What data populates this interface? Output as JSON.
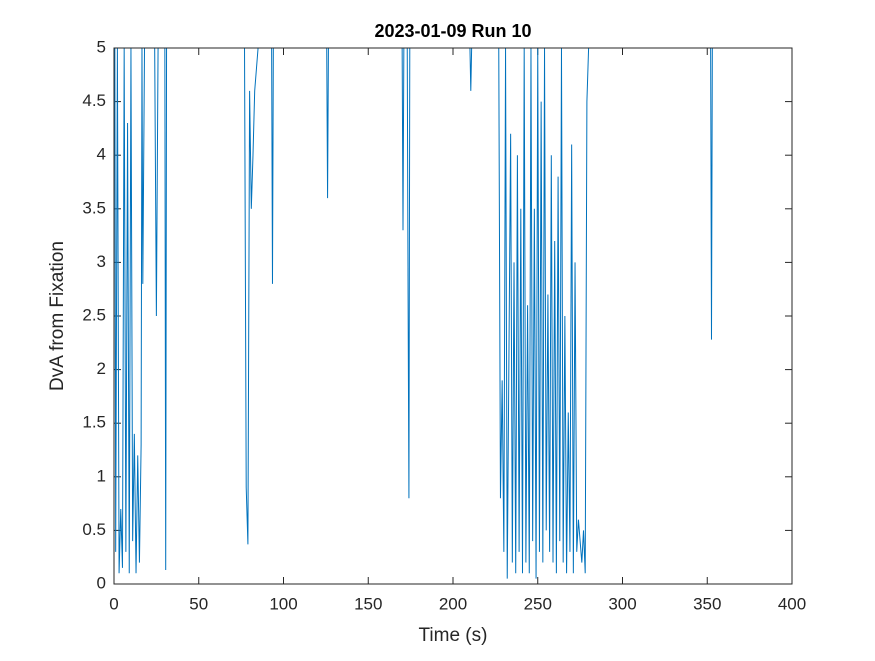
{
  "chart_data": {
    "type": "line",
    "title": "2023-01-09 Run 10",
    "x_label": "Time (s)",
    "y_label": "DvA from Fixation",
    "xlim": [
      0,
      400
    ],
    "ylim": [
      0,
      5
    ],
    "xticks": [
      0,
      50,
      100,
      150,
      200,
      250,
      300,
      350,
      400
    ],
    "yticks": [
      0,
      0.5,
      1,
      1.5,
      2,
      2.5,
      3,
      3.5,
      4,
      4.5,
      5
    ],
    "x": [
      0.5,
      1,
      2,
      3,
      4,
      5,
      6,
      7,
      8,
      9,
      10,
      11,
      12,
      13,
      14,
      15,
      16,
      16.5,
      17,
      18,
      null,
      24,
      25,
      26,
      null,
      30,
      30.5,
      31,
      null,
      77,
      78,
      79,
      80,
      81,
      82,
      83,
      85,
      null,
      93,
      93.5,
      94,
      null,
      125.5,
      126,
      126.5,
      null,
      170,
      170.5,
      171,
      null,
      173,
      173.5,
      174,
      174.5,
      null,
      210,
      210.5,
      211,
      null,
      227,
      228,
      229,
      230,
      231,
      232,
      234,
      235,
      236,
      237,
      238,
      239,
      240,
      241,
      242,
      243,
      244,
      245,
      246,
      247,
      248,
      249,
      250,
      251,
      252,
      253,
      254,
      255,
      256,
      257,
      258,
      259,
      260,
      261,
      262,
      263,
      264,
      265,
      266,
      267,
      268,
      269,
      270,
      271,
      272,
      273,
      274,
      276,
      277,
      278,
      279,
      280,
      null,
      352,
      352.5,
      353
    ],
    "series": [
      {
        "name": "DvA",
        "color": "#0072bd",
        "values": [
          5,
          0.3,
          5,
          0.1,
          0.7,
          0.15,
          5,
          0.3,
          4.3,
          0.1,
          5,
          0.4,
          1.4,
          0.1,
          1.2,
          0.2,
          1.3,
          5,
          2.8,
          5,
          null,
          5,
          2.5,
          5,
          null,
          5,
          0.13,
          5,
          null,
          5,
          0.9,
          0.37,
          4.6,
          3.5,
          4,
          4.6,
          5,
          null,
          5,
          2.8,
          5,
          null,
          5,
          3.6,
          5,
          null,
          5,
          3.3,
          5,
          null,
          5,
          2.7,
          0.8,
          5,
          null,
          5,
          4.6,
          5,
          null,
          5,
          0.8,
          1.9,
          0.3,
          5,
          0.05,
          4.2,
          0.2,
          3,
          0.1,
          4,
          0.3,
          3.5,
          0.1,
          5,
          0.2,
          2.6,
          0.1,
          5,
          0.4,
          3.5,
          0.05,
          5,
          0.3,
          4.5,
          0.2,
          5,
          0.5,
          2.7,
          0.3,
          4,
          0.2,
          3.2,
          0.1,
          3.8,
          0.4,
          5,
          0.2,
          2.5,
          0.1,
          1.6,
          0.3,
          4.1,
          0.1,
          3,
          0.3,
          0.6,
          0.2,
          0.5,
          0.1,
          4.5,
          5,
          null,
          5,
          2.28,
          5
        ]
      }
    ]
  }
}
